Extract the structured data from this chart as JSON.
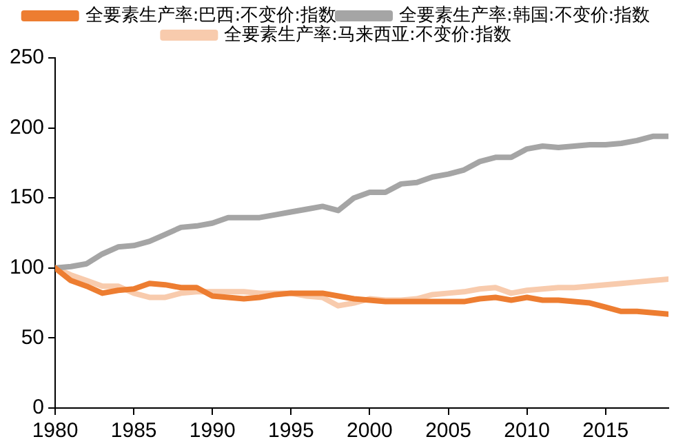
{
  "chart_data": {
    "type": "line",
    "x": [
      1980,
      1981,
      1982,
      1983,
      1984,
      1985,
      1986,
      1987,
      1988,
      1989,
      1990,
      1991,
      1992,
      1993,
      1994,
      1995,
      1996,
      1997,
      1998,
      1999,
      2000,
      2001,
      2002,
      2003,
      2004,
      2005,
      2006,
      2007,
      2008,
      2009,
      2010,
      2011,
      2012,
      2013,
      2014,
      2015,
      2016,
      2017,
      2018,
      2019
    ],
    "series": [
      {
        "name": "全要素生产率:巴西:不变价:指数",
        "color": "#ed7d31",
        "values": [
          100,
          91,
          87,
          82,
          84,
          85,
          89,
          88,
          86,
          86,
          80,
          79,
          78,
          79,
          81,
          82,
          82,
          82,
          80,
          78,
          77,
          76,
          76,
          76,
          76,
          76,
          76,
          78,
          79,
          77,
          79,
          77,
          77,
          76,
          75,
          72,
          69,
          69,
          68,
          67
        ]
      },
      {
        "name": "全要素生产率:韩国:不变价:指数",
        "color": "#a5a5a5",
        "values": [
          100,
          101,
          103,
          110,
          115,
          116,
          119,
          124,
          129,
          130,
          132,
          136,
          136,
          136,
          138,
          140,
          142,
          144,
          141,
          150,
          154,
          154,
          160,
          161,
          165,
          167,
          170,
          176,
          179,
          179,
          185,
          187,
          186,
          187,
          188,
          188,
          189,
          191,
          194,
          194
        ]
      },
      {
        "name": "全要素生产率:马来西亚:不变价:指数",
        "color": "#f8cbad",
        "values": [
          100,
          95,
          91,
          87,
          87,
          82,
          79,
          79,
          82,
          83,
          83,
          83,
          83,
          82,
          82,
          82,
          80,
          79,
          73,
          75,
          78,
          77,
          77,
          78,
          81,
          82,
          83,
          85,
          86,
          82,
          84,
          85,
          86,
          86,
          87,
          88,
          89,
          90,
          91,
          92
        ]
      }
    ],
    "xlim": [
      1980,
      2019
    ],
    "xticks": [
      1980,
      1985,
      1990,
      1995,
      2000,
      2005,
      2010,
      2015
    ],
    "ylim": [
      0,
      250
    ],
    "yticks": [
      0,
      50,
      100,
      150,
      200,
      250
    ],
    "grid": false,
    "legend": "top",
    "marker": "none",
    "line_style": "solid"
  }
}
